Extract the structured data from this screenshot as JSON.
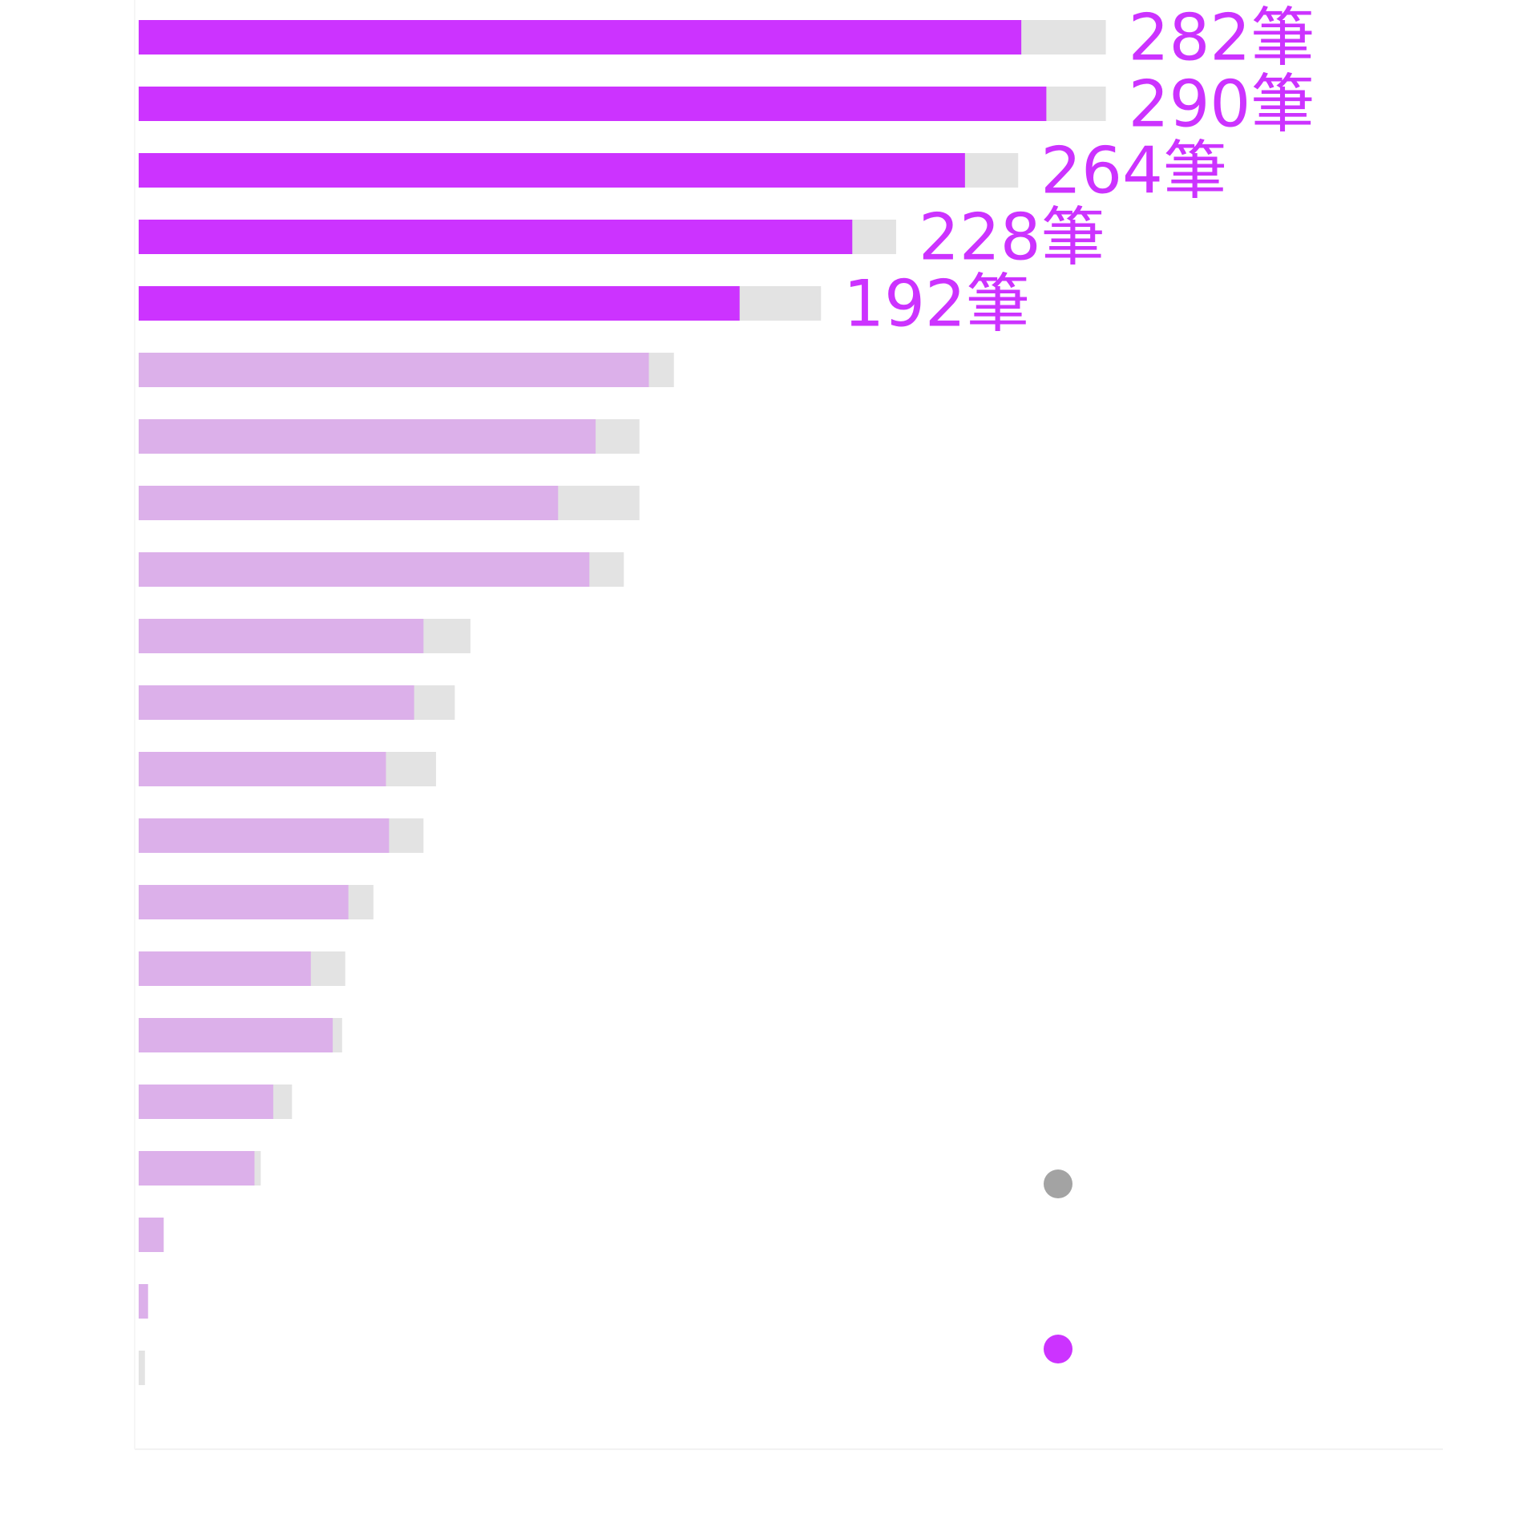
{
  "chart_data": {
    "type": "bar",
    "orientation": "horizontal",
    "grid": false,
    "legend_placement": "bottom-right",
    "legend": [
      {
        "color": "#a3a3a3"
      },
      {
        "color": "#cc33ff"
      }
    ],
    "colors": {
      "highlight": "#cc33ff",
      "muted": "#dcb0ea",
      "track": "#e3e3e3",
      "legend_gray": "#a3a3a3"
    },
    "series": [
      {
        "role": "total",
        "values": [
          309,
          309,
          281,
          242,
          218,
          171,
          160,
          160,
          155,
          106,
          101,
          95,
          91,
          75,
          66,
          65,
          49,
          39,
          1,
          1,
          2
        ]
      },
      {
        "role": "highlight",
        "values": [
          282,
          290,
          264,
          228,
          192,
          163,
          146,
          134,
          144,
          91,
          88,
          79,
          80,
          67,
          55,
          62,
          43,
          37,
          8,
          3,
          0
        ]
      }
    ],
    "highlighted_rows": [
      0,
      1,
      2,
      3,
      4
    ],
    "data_labels": [
      "282筆",
      "290筆",
      "264筆",
      "228筆",
      "192筆"
    ],
    "xlim": [
      0,
      315
    ]
  }
}
